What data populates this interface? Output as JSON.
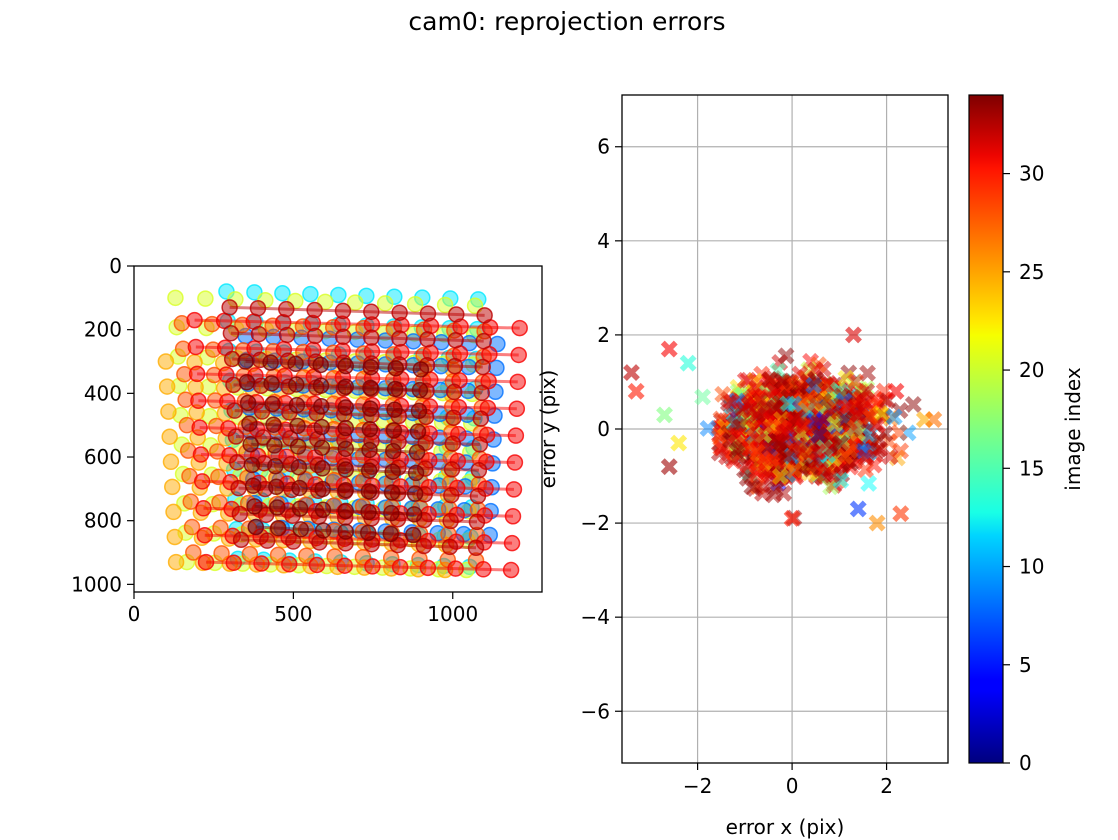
{
  "chart_data": {
    "title": "cam0: reprojection errors",
    "colorbar": {
      "label": "image index",
      "range": [
        0,
        34
      ],
      "ticks": [
        0,
        5,
        10,
        15,
        20,
        25,
        30
      ],
      "colormap": "jet"
    },
    "panels": [
      {
        "type": "scatter",
        "role": "reprojected corner positions (image coordinates)",
        "xlabel": "",
        "ylabel": "",
        "xlim": [
          0,
          1280
        ],
        "ylim": [
          1024,
          0
        ],
        "y_inverted": true,
        "xticks": [
          0,
          500,
          1000
        ],
        "yticks": [
          0,
          200,
          400,
          600,
          800,
          1000
        ],
        "grid": false,
        "marker": "circle",
        "point_groups": [
          {
            "image_index": 12,
            "x_range": [
              290,
              1080
            ],
            "y_range": [
              80,
              920
            ],
            "cols": 10,
            "rows": 10
          },
          {
            "image_index": 20,
            "x_range": [
              130,
              1070
            ],
            "y_range": [
              100,
              930
            ],
            "cols": 11,
            "rows": 10
          },
          {
            "image_index": 24,
            "x_range": [
              100,
              1000
            ],
            "y_range": [
              300,
              930
            ],
            "cols": 11,
            "rows": 9
          },
          {
            "image_index": 8,
            "x_range": [
              350,
              1140
            ],
            "y_range": [
              220,
              820
            ],
            "cols": 10,
            "rows": 9
          },
          {
            "image_index": 27,
            "x_range": [
              150,
              1100
            ],
            "y_range": [
              180,
              900
            ],
            "cols": 11,
            "rows": 10
          },
          {
            "image_index": 30,
            "x_range": [
              190,
              1210
            ],
            "y_range": [
              170,
              930
            ],
            "cols": 12,
            "rows": 10
          },
          {
            "image_index": 32,
            "x_range": [
              300,
              1100
            ],
            "y_range": [
              130,
              860
            ],
            "cols": 10,
            "rows": 10
          },
          {
            "image_index": 34,
            "x_range": [
              350,
              900
            ],
            "y_range": [
              300,
              820
            ],
            "cols": 8,
            "rows": 9
          }
        ]
      },
      {
        "type": "scatter",
        "role": "reprojection errors",
        "xlabel": "error x (pix)",
        "ylabel": "error y (pix)",
        "xlim": [
          -3.6,
          3.3
        ],
        "ylim": [
          -7.1,
          7.1
        ],
        "xticks": [
          -2,
          0,
          2
        ],
        "yticks": [
          -6,
          -4,
          -2,
          0,
          2,
          4,
          6
        ],
        "grid": true,
        "marker": "x",
        "cluster": {
          "center": [
            0.2,
            0.0
          ],
          "x_spread": 1.3,
          "y_spread": 0.85,
          "count": 1500
        },
        "notable_points": [
          {
            "x": -3.4,
            "y": 1.2,
            "c": 32
          },
          {
            "x": -3.3,
            "y": 0.8,
            "c": 29
          },
          {
            "x": -2.7,
            "y": 0.3,
            "c": 17
          },
          {
            "x": -2.6,
            "y": 1.7,
            "c": 30
          },
          {
            "x": -2.6,
            "y": -0.8,
            "c": 33
          },
          {
            "x": -2.2,
            "y": 1.4,
            "c": 14
          },
          {
            "x": -2.4,
            "y": -0.3,
            "c": 22
          },
          {
            "x": 0.0,
            "y": -1.9,
            "c": 29
          },
          {
            "x": 1.8,
            "y": -2.0,
            "c": 25
          },
          {
            "x": 2.3,
            "y": -1.8,
            "c": 28
          },
          {
            "x": 1.4,
            "y": -1.7,
            "c": 6
          },
          {
            "x": 2.8,
            "y": 0.2,
            "c": 24
          },
          {
            "x": 3.0,
            "y": 0.2,
            "c": 26
          },
          {
            "x": 1.3,
            "y": 2.0,
            "c": 31
          },
          {
            "x": 2.2,
            "y": 0.8,
            "c": 30
          }
        ]
      }
    ]
  }
}
